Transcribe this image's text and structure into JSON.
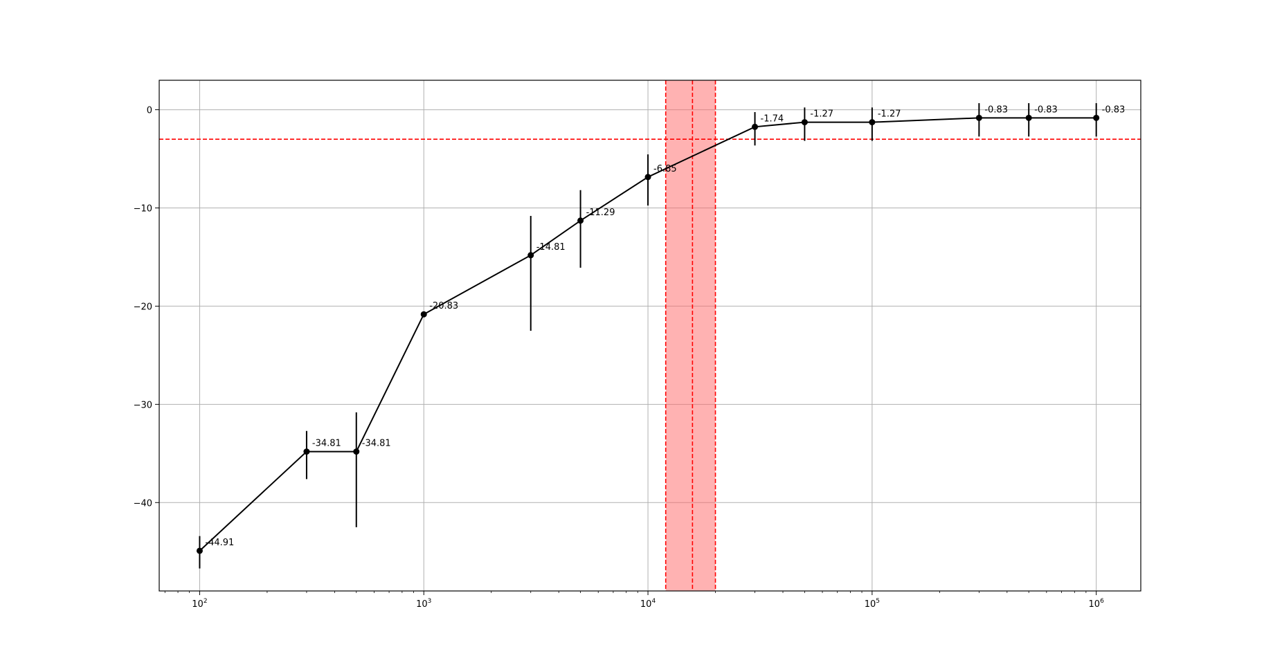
{
  "chart_data": {
    "type": "line",
    "title": "",
    "xlabel": "",
    "ylabel": "",
    "x_scale": "log",
    "xlim": [
      66,
      1580000
    ],
    "ylim": [
      -49.0,
      3.0
    ],
    "grid": true,
    "x_ticks": [
      {
        "value": 100,
        "base": "10",
        "exp": "2"
      },
      {
        "value": 1000,
        "base": "10",
        "exp": "3"
      },
      {
        "value": 10000,
        "base": "10",
        "exp": "4"
      },
      {
        "value": 100000,
        "base": "10",
        "exp": "5"
      },
      {
        "value": 1000000,
        "base": "10",
        "exp": "6"
      }
    ],
    "y_ticks": [
      {
        "value": 0,
        "label": "0"
      },
      {
        "value": -10,
        "label": "−10"
      },
      {
        "value": -20,
        "label": "−20"
      },
      {
        "value": -30,
        "label": "−30"
      },
      {
        "value": -40,
        "label": "−40"
      }
    ],
    "series": [
      {
        "color": "#000000",
        "marker": "circle",
        "points": [
          {
            "x": 100,
            "y": -44.91,
            "err_low": 1.8,
            "err_high": 1.5,
            "label": "-44.91"
          },
          {
            "x": 300,
            "y": -34.81,
            "err_low": 2.8,
            "err_high": 2.1,
            "label": "-34.81"
          },
          {
            "x": 500,
            "y": -34.81,
            "err_low": 7.7,
            "err_high": 4.0,
            "label": "-34.81"
          },
          {
            "x": 1000,
            "y": -20.83,
            "err_low": 0.0,
            "err_high": 0.0,
            "label": "-20.83"
          },
          {
            "x": 3000,
            "y": -14.81,
            "err_low": 7.7,
            "err_high": 4.0,
            "label": "-14.81"
          },
          {
            "x": 5000,
            "y": -11.29,
            "err_low": 4.8,
            "err_high": 3.1,
            "label": "-11.29"
          },
          {
            "x": 10000,
            "y": -6.85,
            "err_low": 2.9,
            "err_high": 2.3,
            "label": "-6.85"
          },
          {
            "x": 30000,
            "y": -1.74,
            "err_low": 1.9,
            "err_high": 1.5,
            "label": "-1.74"
          },
          {
            "x": 50000,
            "y": -1.27,
            "err_low": 1.9,
            "err_high": 1.5,
            "label": "-1.27"
          },
          {
            "x": 100000,
            "y": -1.27,
            "err_low": 1.9,
            "err_high": 1.5,
            "label": "-1.27"
          },
          {
            "x": 300000,
            "y": -0.83,
            "err_low": 1.9,
            "err_high": 1.5,
            "label": "-0.83"
          },
          {
            "x": 500000,
            "y": -0.83,
            "err_low": 1.9,
            "err_high": 1.5,
            "label": "-0.83"
          },
          {
            "x": 1000000,
            "y": -0.83,
            "err_low": 1.9,
            "err_high": 1.5,
            "label": "-0.83"
          }
        ]
      }
    ],
    "annotations": {
      "hline": {
        "y": -3.0,
        "color": "#ff0000",
        "style": "dashed"
      },
      "shaded_band": {
        "x_start": 12000,
        "x_end": 20000,
        "color": "#ff6666",
        "opacity": 0.5
      },
      "vlines": [
        {
          "x": 12000,
          "color": "#ff0000",
          "style": "dashed"
        },
        {
          "x": 15800,
          "color": "#ff0000",
          "style": "dashed"
        },
        {
          "x": 20000,
          "color": "#ff0000",
          "style": "dashed"
        }
      ]
    }
  }
}
